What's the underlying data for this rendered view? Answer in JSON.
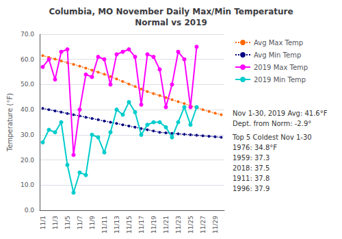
{
  "chart_data": {
    "type": "line",
    "title": "Columbia, MO November Daily Max/Min Temperature\nNormal vs 2019",
    "y_label": "Temperature (°F)",
    "categories": [
      "11/1",
      null,
      "11/3",
      null,
      "11/5",
      null,
      "11/7",
      null,
      "11/9",
      null,
      "11/11",
      null,
      "11/13",
      null,
      "11/15",
      null,
      "11/17",
      null,
      "11/19",
      null,
      "11/21",
      null,
      "11/23",
      null,
      "11/25",
      null,
      "11/27",
      null,
      "11/29",
      null
    ],
    "series": [
      {
        "name": "Avg Max Temp",
        "color": "#FF6600",
        "marker": "circle",
        "line_style": "dotted",
        "values": [
          61.5,
          60.8,
          60.1,
          59.4,
          58.7,
          58.0,
          57.3,
          56.5,
          55.7,
          54.9,
          54.1,
          53.2,
          52.2,
          51.2,
          50.2,
          49.2,
          48.2,
          47.2,
          46.4,
          45.6,
          44.8,
          44.0,
          43.2,
          42.4,
          41.6,
          40.8,
          40.0,
          39.3,
          38.6,
          38.0
        ]
      },
      {
        "name": "Avg Min Temp",
        "color": "#000080",
        "marker": "circle",
        "line_style": "dotted",
        "values": [
          40.5,
          40.0,
          39.5,
          39.0,
          38.5,
          38.0,
          37.5,
          37.0,
          36.5,
          36.0,
          35.5,
          35.0,
          34.5,
          34.0,
          33.5,
          33.0,
          32.5,
          32.0,
          31.5,
          31.0,
          30.8,
          30.6,
          30.4,
          30.2,
          30.0,
          29.8,
          29.6,
          29.4,
          29.2,
          29.0
        ]
      },
      {
        "name": "2019 Max Temp",
        "color": "#FF00FF",
        "marker": "circle",
        "line_style": "solid",
        "values": [
          57,
          60,
          52,
          63,
          64,
          22,
          40,
          54,
          53,
          61,
          60,
          50,
          62,
          63,
          64,
          61,
          42,
          62,
          61,
          56,
          41,
          50,
          63,
          60,
          41,
          65,
          null,
          null,
          null,
          null
        ]
      },
      {
        "name": "2019 Min Temp",
        "color": "#00CCCC",
        "marker": "circle",
        "line_style": "solid",
        "values": [
          27,
          32,
          31,
          35,
          18,
          7,
          15,
          14,
          30,
          29,
          23,
          31,
          40,
          38,
          43,
          39,
          30,
          34,
          35,
          35,
          33,
          29,
          35,
          41,
          34,
          41,
          null,
          null,
          null,
          null
        ]
      }
    ],
    "ylim": [
      0,
      70
    ],
    "yticks": [
      {
        "value": 0,
        "label": "0.0"
      },
      {
        "value": 10,
        "label": "10.0"
      },
      {
        "value": 20,
        "label": "20.0"
      },
      {
        "value": 30,
        "label": "30.0"
      },
      {
        "value": 40,
        "label": "40.0"
      },
      {
        "value": 50,
        "label": "50.0"
      },
      {
        "value": 60,
        "label": "60.0"
      },
      {
        "value": 70,
        "label": "70.0"
      }
    ],
    "grid": true,
    "legend": "right",
    "annotations": [
      "Nov 1-30, 2019 Avg: 41.6°F",
      "Dept. from Norm: -2.9°",
      "Top 5 Coldest Nov 1-30",
      "1976: 34.8°F",
      "1959: 37.3",
      "2018: 37.5",
      "1911: 37.8",
      "1996: 37.9"
    ]
  }
}
